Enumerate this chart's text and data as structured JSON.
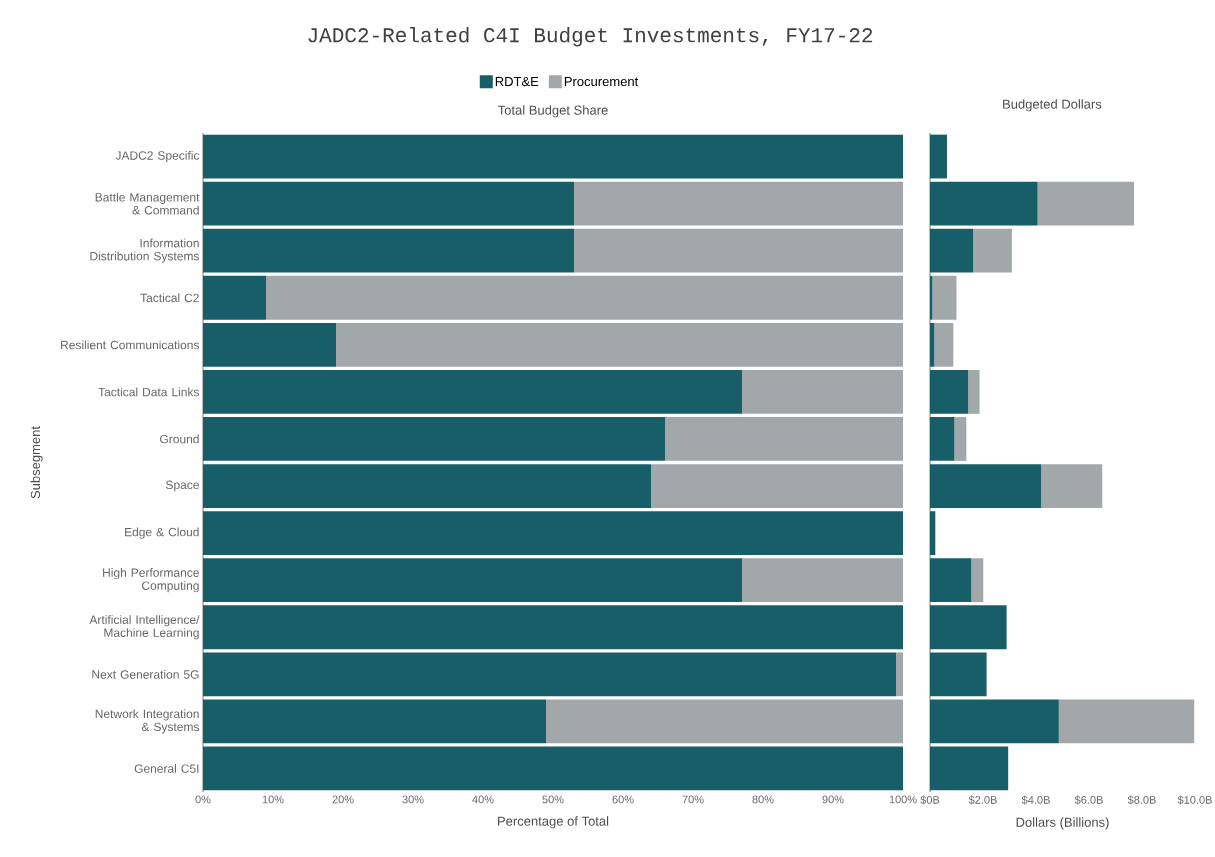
{
  "chart_data": [
    {
      "type": "bar",
      "orientation": "horizontal",
      "stacked": true,
      "title": "JADC2-Related C4I Budget Investments, FY17-22",
      "subtitle": "Total Budget Share",
      "xlabel": "Percentage of Total",
      "ylabel": "Subsegment",
      "legend": "top",
      "categories": [
        "JADC2 Specific",
        "Battle Management & Command",
        "Information Distribution Systems",
        "Tactical C2",
        "Resilient Communications",
        "Tactical Data Links",
        "Ground",
        "Space",
        "Edge & Cloud",
        "High Performance Computing",
        "Artificial Intelligence/ Machine Learning",
        "Next Generation 5G",
        "Network Integration & Systems",
        "General C5I"
      ],
      "series": [
        {
          "name": "RDT&E",
          "color": "#175e69",
          "values": [
            100,
            53,
            53,
            9,
            19,
            77,
            66,
            64,
            100,
            77,
            100,
            99,
            49,
            100
          ]
        },
        {
          "name": "Procurement",
          "color": "#a2a7aa",
          "values": [
            0,
            47,
            47,
            91,
            81,
            23,
            34,
            36,
            0,
            23,
            0,
            1,
            51,
            0
          ]
        }
      ],
      "xlim": [
        0,
        100
      ],
      "xticks": [
        {
          "value": 0,
          "label": "0%"
        },
        {
          "value": 10,
          "label": "10%"
        },
        {
          "value": 20,
          "label": "20%"
        },
        {
          "value": 30,
          "label": "30%"
        },
        {
          "value": 40,
          "label": "40%"
        },
        {
          "value": 50,
          "label": "50%"
        },
        {
          "value": 60,
          "label": "60%"
        },
        {
          "value": 70,
          "label": "70%"
        },
        {
          "value": 80,
          "label": "80%"
        },
        {
          "value": 90,
          "label": "90%"
        },
        {
          "value": 100,
          "label": "100%"
        }
      ]
    },
    {
      "type": "bar",
      "orientation": "horizontal",
      "stacked": true,
      "title": "Budgeted Dollars",
      "xlabel": "Dollars (Billions)",
      "categories": [
        null,
        null,
        null,
        null,
        null,
        null,
        null,
        null,
        null,
        null,
        null,
        null,
        null,
        null
      ],
      "series": [
        {
          "color": "#175e69",
          "values": [
            0.64,
            4.06,
            1.63,
            0.09,
            0.16,
            1.44,
            0.92,
            4.19,
            0.2,
            1.56,
            2.89,
            2.13,
            4.86,
            2.95
          ]
        },
        {
          "color": "#a2a7aa",
          "values": [
            0,
            3.64,
            1.46,
            0.91,
            0.72,
            0.43,
            0.45,
            2.31,
            0,
            0.45,
            0,
            0.02,
            5.11,
            0
          ]
        }
      ],
      "xlim": [
        0,
        10
      ],
      "xticks": [
        {
          "value": 0,
          "label": "$0B"
        },
        {
          "value": 2,
          "label": "$2.0B"
        },
        {
          "value": 4,
          "label": "$4.0B"
        },
        {
          "value": 6,
          "label": "$6.0B"
        },
        {
          "value": 8,
          "label": "$8.0B"
        },
        {
          "value": 10,
          "label": "$10.0B"
        }
      ]
    }
  ]
}
